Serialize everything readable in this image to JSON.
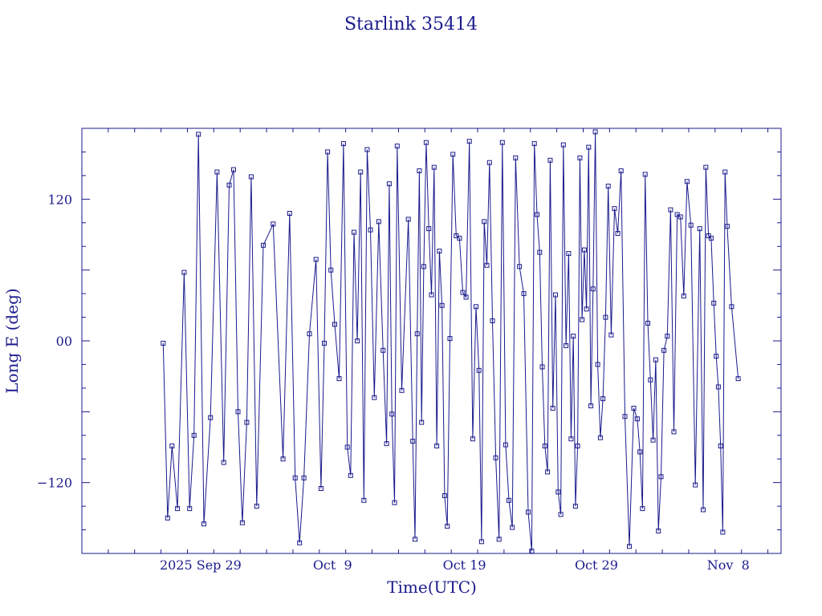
{
  "chart_data": {
    "type": "line",
    "title": "Starlink 35414",
    "xlabel": "Time(UTC)",
    "ylabel": "Long E (deg)",
    "x_unit": "days",
    "xlim": [
      "2025-09-20",
      "2025-11-12"
    ],
    "ylim": [
      -180,
      180
    ],
    "x_ticks": [
      {
        "date": "2025-09-29",
        "label": "2025 Sep 29"
      },
      {
        "date": "2025-10-09",
        "label": "Oct  9"
      },
      {
        "date": "2025-10-19",
        "label": "Oct 19"
      },
      {
        "date": "2025-10-29",
        "label": "Oct 29"
      },
      {
        "date": "2025-11-08",
        "label": "Nov  8"
      }
    ],
    "y_ticks": [
      {
        "value": 120,
        "label": "120"
      },
      {
        "value": 0,
        "label": "00"
      },
      {
        "value": -120,
        "label": "−120"
      }
    ],
    "grid": false,
    "marker": "square",
    "series_color": "#1a1a8c",
    "series": [
      {
        "points": [
          [
            "2025-09-26",
            -2
          ],
          [
            "2025-09-26",
            -150
          ],
          [
            "2025-09-26",
            -89
          ],
          [
            "2025-09-27",
            -142
          ],
          [
            "2025-09-27",
            58
          ],
          [
            "2025-09-28",
            -142
          ],
          [
            "2025-09-28",
            -80
          ],
          [
            "2025-09-28",
            175
          ],
          [
            "2025-09-29",
            -155
          ],
          [
            "2025-09-29",
            -65
          ],
          [
            "2025-09-30",
            143
          ],
          [
            "2025-09-30",
            -103
          ],
          [
            "2025-10-01",
            132
          ],
          [
            "2025-10-01",
            145
          ],
          [
            "2025-10-01",
            -60
          ],
          [
            "2025-10-02",
            -154
          ],
          [
            "2025-10-02",
            -69
          ],
          [
            "2025-10-02",
            139
          ],
          [
            "2025-10-03",
            -140
          ],
          [
            "2025-10-03",
            81
          ],
          [
            "2025-10-04",
            99
          ],
          [
            "2025-10-05",
            -100
          ],
          [
            "2025-10-05",
            108
          ],
          [
            "2025-10-06",
            -116
          ],
          [
            "2025-10-06",
            -171
          ],
          [
            "2025-10-06",
            -116
          ],
          [
            "2025-10-07",
            6
          ],
          [
            "2025-10-07",
            69
          ],
          [
            "2025-10-08",
            -125
          ],
          [
            "2025-10-08",
            -2
          ],
          [
            "2025-10-08",
            160
          ],
          [
            "2025-10-08",
            60
          ],
          [
            "2025-10-09",
            14
          ],
          [
            "2025-10-09",
            -32
          ],
          [
            "2025-10-09",
            167
          ],
          [
            "2025-10-10",
            -90
          ],
          [
            "2025-10-10",
            -114
          ],
          [
            "2025-10-10",
            92
          ],
          [
            "2025-10-10",
            0
          ],
          [
            "2025-10-11",
            143
          ],
          [
            "2025-10-11",
            -135
          ],
          [
            "2025-10-11",
            162
          ],
          [
            "2025-10-11",
            94
          ],
          [
            "2025-10-12",
            -48
          ],
          [
            "2025-10-12",
            101
          ],
          [
            "2025-10-12",
            -8
          ],
          [
            "2025-10-13",
            -87
          ],
          [
            "2025-10-13",
            133
          ],
          [
            "2025-10-13",
            -62
          ],
          [
            "2025-10-13",
            -137
          ],
          [
            "2025-10-13",
            165
          ],
          [
            "2025-10-14",
            -42
          ],
          [
            "2025-10-14",
            103
          ],
          [
            "2025-10-15",
            -85
          ],
          [
            "2025-10-15",
            -168
          ],
          [
            "2025-10-15",
            6
          ],
          [
            "2025-10-15",
            144
          ],
          [
            "2025-10-15",
            -69
          ],
          [
            "2025-10-15",
            63
          ],
          [
            "2025-10-16",
            168
          ],
          [
            "2025-10-16",
            95
          ],
          [
            "2025-10-16",
            39
          ],
          [
            "2025-10-16",
            147
          ],
          [
            "2025-10-16",
            -89
          ],
          [
            "2025-10-17",
            76
          ],
          [
            "2025-10-17",
            30
          ],
          [
            "2025-10-17",
            -131
          ],
          [
            "2025-10-17",
            -157
          ],
          [
            "2025-10-17",
            2
          ],
          [
            "2025-10-18",
            158
          ],
          [
            "2025-10-18",
            89
          ],
          [
            "2025-10-18",
            87
          ],
          [
            "2025-10-18",
            41
          ],
          [
            "2025-10-19",
            37
          ],
          [
            "2025-10-19",
            169
          ],
          [
            "2025-10-19",
            -83
          ],
          [
            "2025-10-19",
            29
          ],
          [
            "2025-10-20",
            -25
          ],
          [
            "2025-10-20",
            -170
          ],
          [
            "2025-10-20",
            101
          ],
          [
            "2025-10-20",
            64
          ],
          [
            "2025-10-20",
            151
          ],
          [
            "2025-10-21",
            17
          ],
          [
            "2025-10-21",
            -99
          ],
          [
            "2025-10-21",
            -168
          ],
          [
            "2025-10-21",
            168
          ],
          [
            "2025-10-22",
            -88
          ],
          [
            "2025-10-22",
            -135
          ],
          [
            "2025-10-22",
            -158
          ],
          [
            "2025-10-22",
            155
          ],
          [
            "2025-10-23",
            63
          ],
          [
            "2025-10-23",
            40
          ],
          [
            "2025-10-23",
            -145
          ],
          [
            "2025-10-24",
            -178
          ],
          [
            "2025-10-24",
            167
          ],
          [
            "2025-10-24",
            107
          ],
          [
            "2025-10-24",
            75
          ],
          [
            "2025-10-24",
            -22
          ],
          [
            "2025-10-25",
            -89
          ],
          [
            "2025-10-25",
            -111
          ],
          [
            "2025-10-25",
            153
          ],
          [
            "2025-10-25",
            -57
          ],
          [
            "2025-10-25",
            39
          ],
          [
            "2025-10-26",
            -128
          ],
          [
            "2025-10-26",
            -147
          ],
          [
            "2025-10-26",
            166
          ],
          [
            "2025-10-26",
            -4
          ],
          [
            "2025-10-26",
            74
          ],
          [
            "2025-10-27",
            -83
          ],
          [
            "2025-10-27",
            4
          ],
          [
            "2025-10-27",
            -140
          ],
          [
            "2025-10-27",
            -89
          ],
          [
            "2025-10-27",
            155
          ],
          [
            "2025-10-27",
            18
          ],
          [
            "2025-10-28",
            77
          ],
          [
            "2025-10-28",
            27
          ],
          [
            "2025-10-28",
            164
          ],
          [
            "2025-10-28",
            -55
          ],
          [
            "2025-10-28",
            44
          ],
          [
            "2025-10-28",
            177
          ],
          [
            "2025-10-29",
            -20
          ],
          [
            "2025-10-29",
            -82
          ],
          [
            "2025-10-29",
            -49
          ],
          [
            "2025-10-29",
            20
          ],
          [
            "2025-10-29",
            131
          ],
          [
            "2025-10-30",
            5
          ],
          [
            "2025-10-30",
            112
          ],
          [
            "2025-10-30",
            91
          ],
          [
            "2025-10-30",
            144
          ],
          [
            "2025-10-31",
            -64
          ],
          [
            "2025-10-31",
            -174
          ],
          [
            "2025-10-31",
            -57
          ],
          [
            "2025-11-01",
            -66
          ],
          [
            "2025-11-01",
            -94
          ],
          [
            "2025-11-01",
            -142
          ],
          [
            "2025-11-01",
            141
          ],
          [
            "2025-11-01",
            15
          ],
          [
            "2025-11-02",
            -33
          ],
          [
            "2025-11-02",
            -84
          ],
          [
            "2025-11-02",
            -16
          ],
          [
            "2025-11-02",
            -161
          ],
          [
            "2025-11-02",
            -115
          ],
          [
            "2025-11-03",
            -8
          ],
          [
            "2025-11-03",
            4
          ],
          [
            "2025-11-03",
            111
          ],
          [
            "2025-11-03",
            -77
          ],
          [
            "2025-11-04",
            107
          ],
          [
            "2025-11-04",
            105
          ],
          [
            "2025-11-04",
            38
          ],
          [
            "2025-11-04",
            135
          ],
          [
            "2025-11-05",
            98
          ],
          [
            "2025-11-05",
            -122
          ],
          [
            "2025-11-05",
            95
          ],
          [
            "2025-11-06",
            -143
          ],
          [
            "2025-11-06",
            147
          ],
          [
            "2025-11-06",
            89
          ],
          [
            "2025-11-06",
            87
          ],
          [
            "2025-11-06",
            32
          ],
          [
            "2025-11-07",
            -13
          ],
          [
            "2025-11-07",
            -39
          ],
          [
            "2025-11-07",
            -89
          ],
          [
            "2025-11-07",
            -162
          ],
          [
            "2025-11-07",
            143
          ],
          [
            "2025-11-07",
            97
          ],
          [
            "2025-11-08",
            29
          ],
          [
            "2025-11-08",
            -32
          ]
        ]
      }
    ]
  }
}
